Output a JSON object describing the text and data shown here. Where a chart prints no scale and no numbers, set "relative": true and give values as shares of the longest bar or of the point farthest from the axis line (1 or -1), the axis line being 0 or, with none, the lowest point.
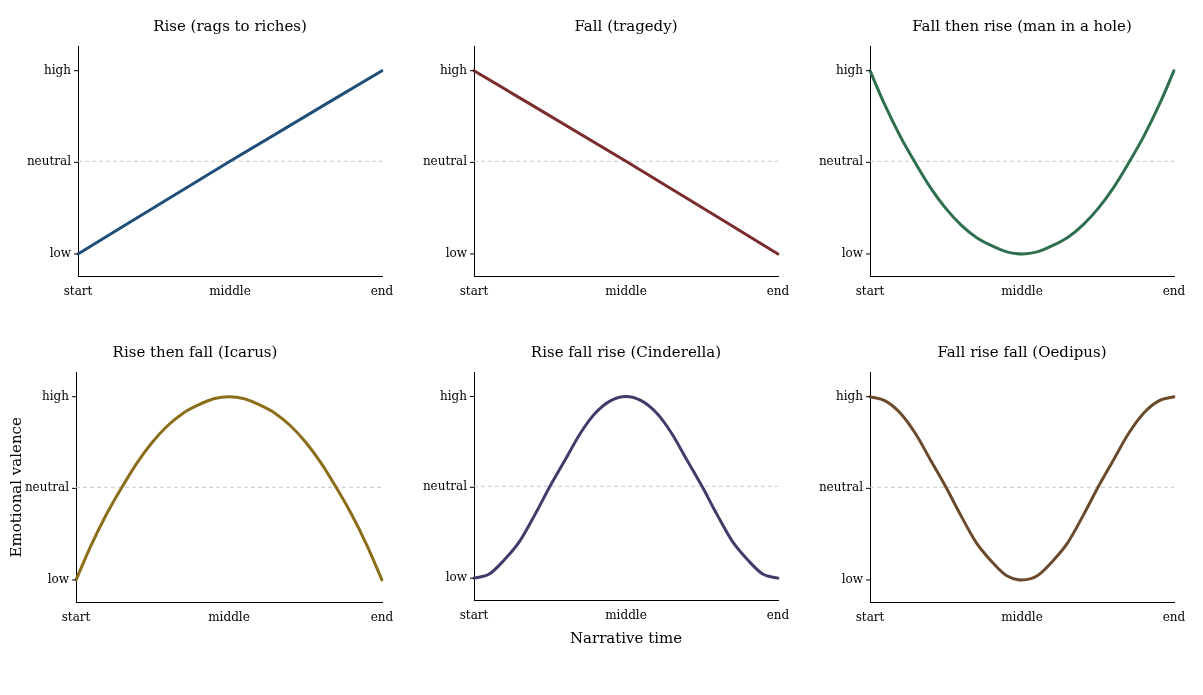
{
  "chart_data": [
    {
      "type": "line",
      "title": "Rise (rags to riches)",
      "relative": true,
      "categories": [
        "start",
        "middle",
        "end"
      ],
      "series": [
        {
          "color": "#1f4e79",
          "values": [
            0.11,
            0.56,
            1
          ]
        }
      ],
      "annotations": [
        "low",
        "neutral",
        "high"
      ],
      "ref_lines": [
        {
          "axis": "y",
          "value": 0.56,
          "color": "#c8c8c8",
          "line_style": "dashed"
        }
      ],
      "grid": false,
      "legend": false,
      "marker": "none"
    },
    {
      "type": "line",
      "title": "Fall (tragedy)",
      "relative": true,
      "categories": [
        "start",
        "middle",
        "end"
      ],
      "series": [
        {
          "color": "#7b2d2d",
          "values": [
            1,
            0.56,
            0.11
          ]
        }
      ],
      "annotations": [
        "low",
        "neutral",
        "high"
      ],
      "ref_lines": [
        {
          "axis": "y",
          "value": 0.56,
          "color": "#c8c8c8",
          "line_style": "dashed"
        }
      ],
      "grid": false,
      "legend": false,
      "marker": "none"
    },
    {
      "type": "line",
      "title": "Fall then rise (man in a hole)",
      "relative": true,
      "categories": [
        "start",
        null,
        null,
        null,
        null,
        null,
        null,
        null,
        null,
        null,
        "middle",
        null,
        null,
        null,
        null,
        null,
        null,
        null,
        null,
        null,
        "end"
      ],
      "series": [
        {
          "color": "#2e6f4e",
          "values": [
            1,
            0.83,
            0.68,
            0.55,
            0.43,
            0.33,
            0.25,
            0.19,
            0.15,
            0.12,
            0.11,
            0.12,
            0.15,
            0.19,
            0.25,
            0.33,
            0.43,
            0.55,
            0.68,
            0.83,
            1
          ]
        }
      ],
      "annotations": [
        "low",
        "neutral",
        "high"
      ],
      "ref_lines": [
        {
          "axis": "y",
          "value": 0.56,
          "color": "#c8c8c8",
          "line_style": "dashed"
        }
      ],
      "grid": false,
      "legend": false,
      "marker": "none"
    },
    {
      "type": "line",
      "title": "Rise then fall (Icarus)",
      "ylabel": "Emotional valence",
      "relative": true,
      "categories": [
        "start",
        null,
        null,
        null,
        null,
        null,
        null,
        null,
        null,
        null,
        "middle",
        null,
        null,
        null,
        null,
        null,
        null,
        null,
        null,
        null,
        "end"
      ],
      "series": [
        {
          "color": "#8b6d1a",
          "values": [
            0.11,
            0.28,
            0.43,
            0.56,
            0.68,
            0.78,
            0.86,
            0.92,
            0.96,
            0.99,
            1,
            0.99,
            0.96,
            0.92,
            0.86,
            0.78,
            0.68,
            0.56,
            0.43,
            0.28,
            0.11
          ]
        }
      ],
      "annotations": [
        "low",
        "neutral",
        "high"
      ],
      "ref_lines": [
        {
          "axis": "y",
          "value": 0.56,
          "color": "#c8c8c8",
          "line_style": "dashed"
        }
      ],
      "grid": false,
      "legend": false,
      "marker": "none"
    },
    {
      "type": "line",
      "title": "Rise fall rise (Cinderella)",
      "xlabel": "Narrative time",
      "relative": true,
      "categories": [
        "start",
        null,
        null,
        null,
        null,
        null,
        null,
        null,
        null,
        null,
        "middle",
        null,
        null,
        null,
        null,
        null,
        null,
        null,
        null,
        null,
        "end"
      ],
      "series": [
        {
          "color": "#463a6b",
          "values": [
            0.11,
            0.13,
            0.2,
            0.29,
            0.42,
            0.56,
            0.69,
            0.82,
            0.92,
            0.98,
            1,
            0.98,
            0.92,
            0.82,
            0.69,
            0.56,
            0.42,
            0.29,
            0.2,
            0.13,
            0.11
          ]
        }
      ],
      "annotations": [
        "low",
        "neutral",
        "high"
      ],
      "ref_lines": [
        {
          "axis": "y",
          "value": 0.56,
          "color": "#c8c8c8",
          "line_style": "dashed"
        }
      ],
      "grid": false,
      "legend": false,
      "marker": "none"
    },
    {
      "type": "line",
      "title": "Fall rise fall (Oedipus)",
      "relative": true,
      "categories": [
        "start",
        null,
        null,
        null,
        null,
        null,
        null,
        null,
        null,
        null,
        "middle",
        null,
        null,
        null,
        null,
        null,
        null,
        null,
        null,
        null,
        "end"
      ],
      "series": [
        {
          "color": "#6b4a2b",
          "values": [
            1,
            0.98,
            0.92,
            0.82,
            0.69,
            0.56,
            0.42,
            0.29,
            0.2,
            0.13,
            0.11,
            0.13,
            0.2,
            0.29,
            0.42,
            0.56,
            0.69,
            0.82,
            0.92,
            0.98,
            1
          ]
        }
      ],
      "annotations": [
        "low",
        "neutral",
        "high"
      ],
      "ref_lines": [
        {
          "axis": "y",
          "value": 0.56,
          "color": "#c8c8c8",
          "line_style": "dashed"
        }
      ],
      "grid": false,
      "legend": false,
      "marker": "none"
    }
  ]
}
